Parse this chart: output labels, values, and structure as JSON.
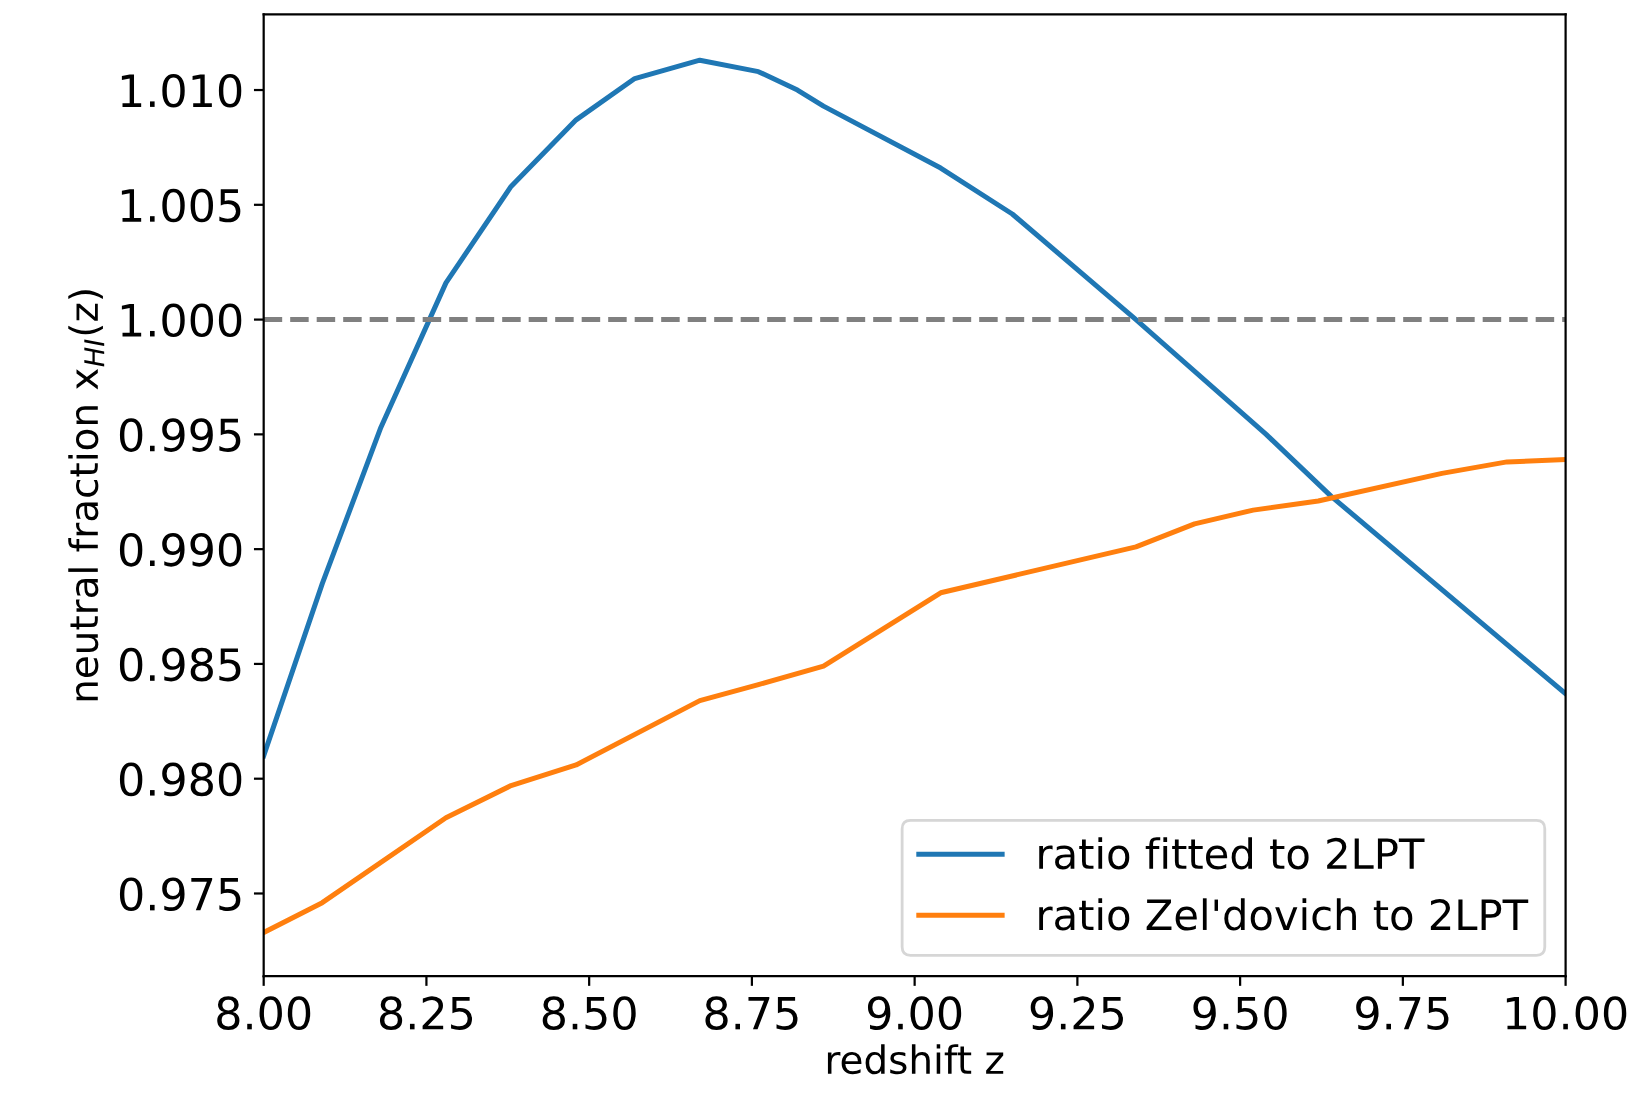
{
  "chart_data": {
    "type": "line",
    "xlabel": "redshift z",
    "ylabel": "neutral fraction x$_{HI}$(z)",
    "xlim": [
      8.0,
      10.0
    ],
    "ylim": [
      0.9714,
      1.0133
    ],
    "xticks": [
      {
        "value": 8.0,
        "label": "8.00"
      },
      {
        "value": 8.25,
        "label": "8.25"
      },
      {
        "value": 8.5,
        "label": "8.50"
      },
      {
        "value": 8.75,
        "label": "8.75"
      },
      {
        "value": 9.0,
        "label": "9.00"
      },
      {
        "value": 9.25,
        "label": "9.25"
      },
      {
        "value": 9.5,
        "label": "9.50"
      },
      {
        "value": 9.75,
        "label": "9.75"
      },
      {
        "value": 10.0,
        "label": "10.00"
      }
    ],
    "yticks": [
      {
        "value": 0.975,
        "label": "0.975"
      },
      {
        "value": 0.98,
        "label": "0.980"
      },
      {
        "value": 0.985,
        "label": "0.985"
      },
      {
        "value": 0.99,
        "label": "0.990"
      },
      {
        "value": 0.995,
        "label": "0.995"
      },
      {
        "value": 1.0,
        "label": "1.000"
      },
      {
        "value": 1.005,
        "label": "1.005"
      },
      {
        "value": 1.01,
        "label": "1.010"
      }
    ],
    "grid": false,
    "legend": "bottom right",
    "marker": "none",
    "line_style": "solid",
    "ref_lines": [
      {
        "axis": "y",
        "value": 1.0,
        "color": "#808080",
        "line_style": "dashed"
      }
    ],
    "series": [
      {
        "name": "ratio fitted to 2LPT",
        "color": "#1f77b4",
        "x": [
          8.0,
          8.09,
          8.18,
          8.28,
          8.38,
          8.48,
          8.57,
          8.67,
          8.76,
          8.82,
          8.86,
          9.04,
          9.15,
          9.34,
          9.54,
          9.64,
          10.0
        ],
        "values": [
          0.981,
          0.9885,
          0.9953,
          1.0016,
          1.0058,
          1.0087,
          1.0105,
          1.0113,
          1.0108,
          1.01,
          1.0093,
          1.0066,
          1.0046,
          1.0,
          0.995,
          0.9923,
          0.9837
        ]
      },
      {
        "name": "ratio Zel'dovich to 2LPT",
        "color": "#ff7f0e",
        "x": [
          8.0,
          8.09,
          8.28,
          8.38,
          8.48,
          8.67,
          8.76,
          8.86,
          9.04,
          9.34,
          9.43,
          9.52,
          9.62,
          9.81,
          9.91,
          10.0
        ],
        "values": [
          0.9733,
          0.9746,
          0.9783,
          0.9797,
          0.9806,
          0.9834,
          0.9841,
          0.9849,
          0.9881,
          0.9901,
          0.9911,
          0.9917,
          0.9921,
          0.9933,
          0.9938,
          0.9939
        ]
      }
    ]
  }
}
